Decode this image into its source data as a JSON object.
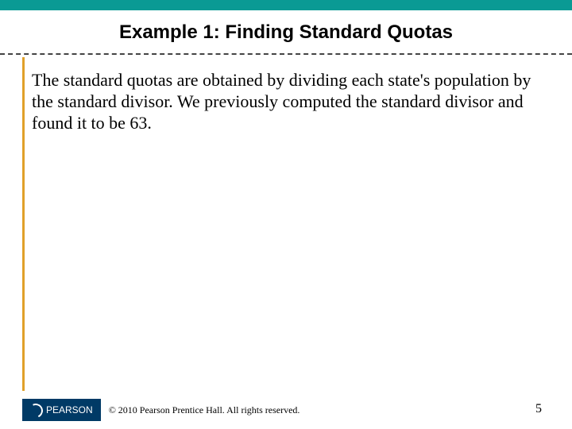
{
  "colors": {
    "header_bar": "#0a9a94",
    "left_rule": "#e0a02a",
    "logo_bg": "#003a66",
    "dash": "#444444",
    "text": "#000000",
    "background": "#ffffff"
  },
  "title": {
    "text": "Example 1: Finding Standard Quotas",
    "font_family": "Arial",
    "font_weight": "bold",
    "font_size_pt": 18
  },
  "body": {
    "text": "The standard quotas are obtained by dividing each state's population by the standard divisor. We previously computed the standard divisor and found it to be 63.",
    "font_family": "Times New Roman",
    "font_size_pt": 17
  },
  "footer": {
    "logo_text": "PEARSON",
    "copyright": "© 2010 Pearson Prentice Hall. All rights reserved.",
    "page_number": "5",
    "font_size_pt": 9
  }
}
